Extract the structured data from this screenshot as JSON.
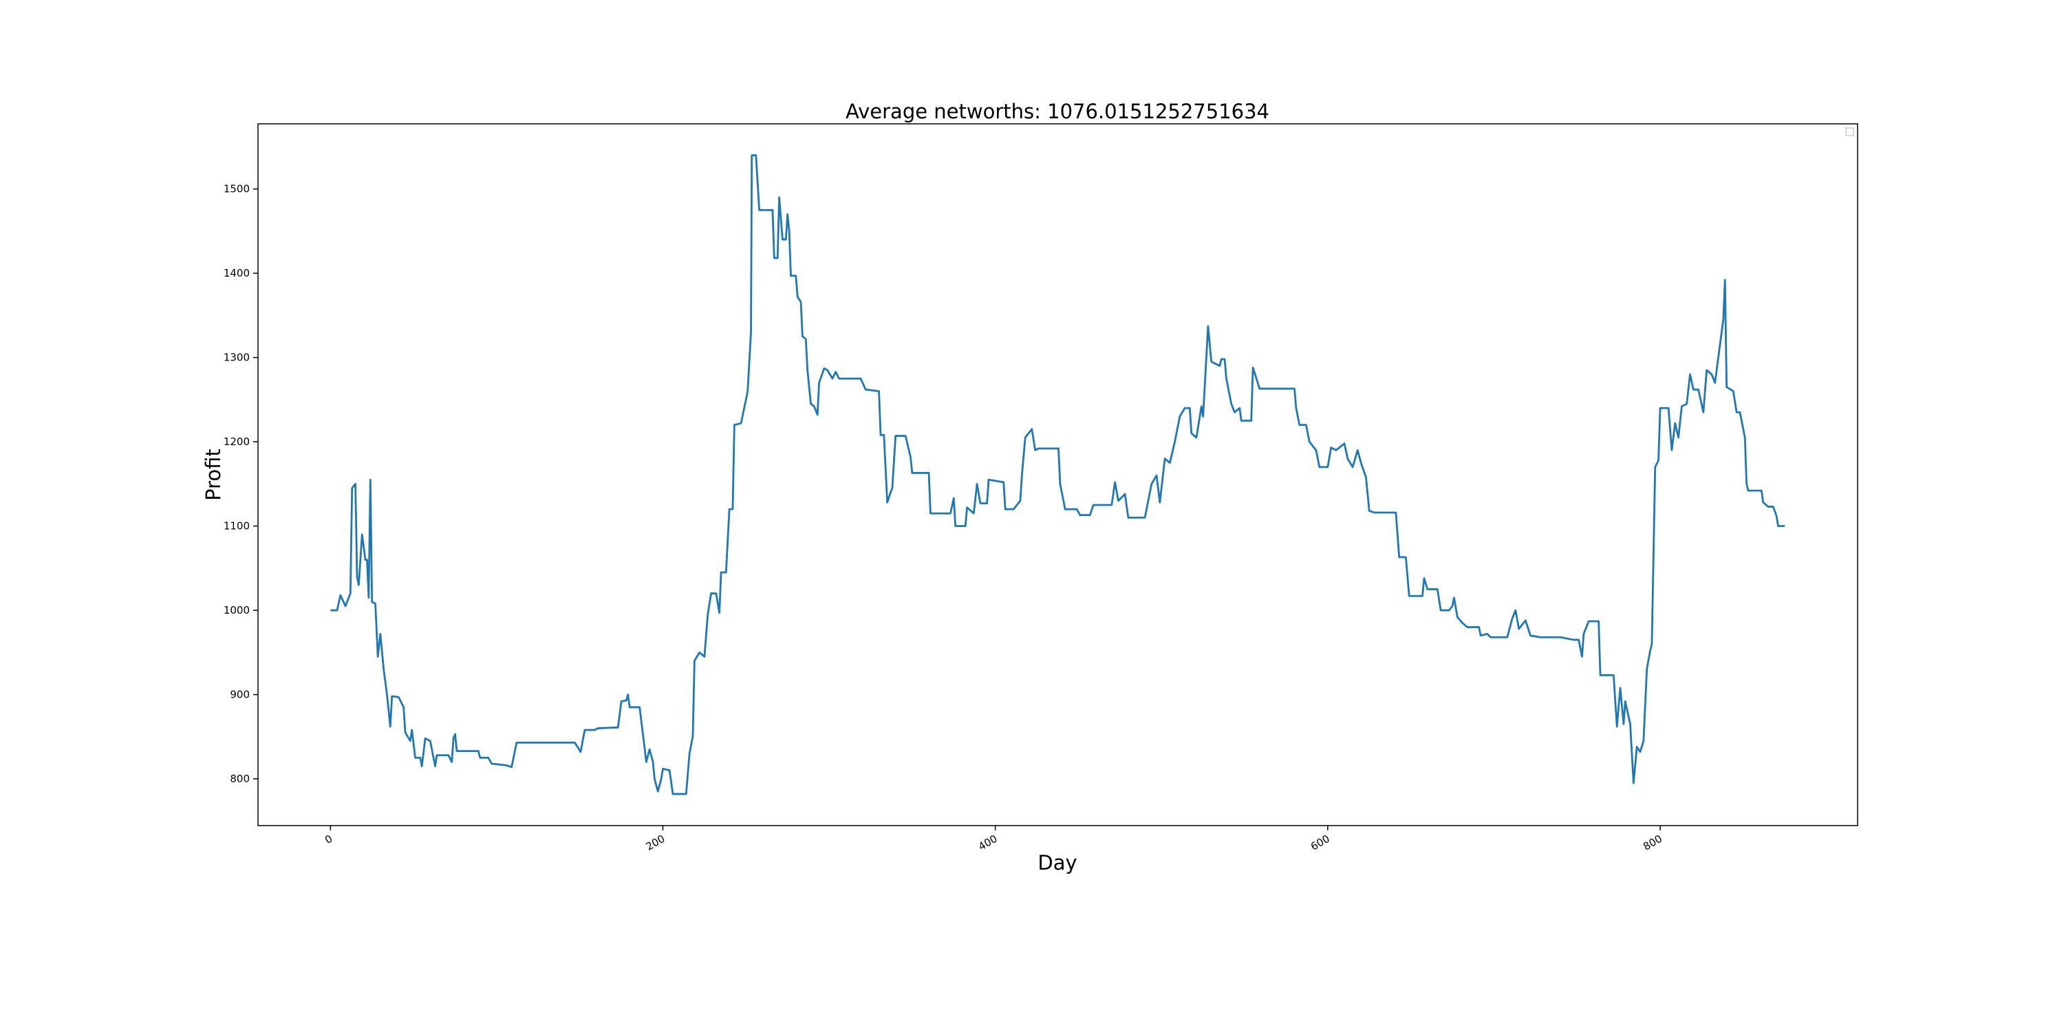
{
  "chart_data": {
    "type": "line",
    "title": "Average networths: 1076.0151252751634",
    "x_label": "Day",
    "y_label": "Profit",
    "x": [
      0,
      4,
      6,
      9,
      12,
      13,
      15,
      16,
      17,
      19,
      21,
      22,
      23,
      24,
      25,
      27,
      28.5,
      30,
      32,
      34,
      36,
      37,
      41,
      44,
      45,
      48,
      49,
      51,
      54,
      55,
      57,
      60,
      63,
      64,
      71,
      73,
      74,
      75,
      76,
      89,
      90,
      95,
      97,
      106,
      109,
      112,
      118,
      147,
      150.5,
      153,
      159,
      161,
      173,
      175,
      178,
      179,
      180,
      186,
      188.5,
      190,
      192,
      194,
      195,
      197,
      199,
      200,
      204,
      206,
      214,
      216,
      218,
      219,
      222,
      225,
      227,
      229,
      232,
      234,
      235,
      238,
      240,
      242,
      243,
      247,
      250,
      251,
      253,
      253.5,
      256,
      258,
      266,
      267,
      269,
      270,
      272,
      274,
      275,
      276,
      277,
      280,
      281,
      283,
      284,
      286,
      287,
      289,
      291,
      293,
      294,
      297,
      299,
      302,
      304,
      306,
      319,
      322,
      330,
      331,
      333,
      335,
      337,
      338,
      340,
      346,
      349,
      350,
      360,
      361,
      373,
      375,
      376,
      382,
      383,
      387,
      389,
      391,
      395,
      396,
      405,
      406,
      411,
      415,
      416,
      418,
      422,
      424,
      426,
      438,
      439,
      442,
      449,
      451,
      457,
      459,
      470,
      472,
      474,
      478,
      480,
      490,
      494,
      497,
      499,
      502,
      505,
      508,
      511,
      514,
      517,
      518,
      521,
      524,
      525,
      528,
      530,
      535,
      536,
      538,
      539,
      542,
      544,
      547,
      548,
      554,
      555,
      559,
      580,
      581,
      583,
      587,
      589,
      593,
      595,
      600,
      602,
      605,
      610,
      612,
      615,
      618,
      620,
      623,
      625,
      628,
      641,
      643,
      647,
      649,
      657,
      658,
      660,
      666,
      668,
      673,
      675,
      676,
      678,
      681,
      684,
      691,
      692,
      696,
      698,
      708,
      711,
      713,
      715,
      719,
      722,
      728,
      740,
      748,
      751,
      753,
      754,
      757,
      763,
      764,
      772,
      774,
      776,
      778,
      779,
      782,
      784,
      786,
      788,
      790,
      792,
      794,
      795,
      797,
      799,
      800,
      805,
      807,
      809,
      811,
      813,
      816,
      818,
      820,
      823,
      826,
      828,
      831,
      833,
      835,
      838,
      839,
      840,
      844,
      846,
      848,
      851,
      852,
      853,
      861,
      862,
      865,
      868,
      870,
      871,
      875
    ],
    "series": [
      {
        "color": "#1f77b4",
        "values": [
          1000,
          1000,
          1018,
          1005,
          1020,
          1145,
          1150,
          1040,
          1030,
          1090,
          1060,
          1060,
          1015,
          1155,
          1010,
          1008,
          945,
          972,
          930,
          900,
          862,
          898,
          897,
          885,
          855,
          845,
          858,
          825,
          825,
          815,
          848,
          845,
          815,
          828,
          828,
          820,
          848,
          853,
          833,
          833,
          825,
          825,
          818,
          816,
          814,
          843,
          843,
          843,
          832,
          858,
          858,
          860,
          861,
          892,
          893,
          900,
          885,
          885,
          845,
          820,
          835,
          820,
          800,
          785,
          800,
          812,
          810,
          782,
          782,
          830,
          850,
          940,
          950,
          945,
          995,
          1020,
          1020,
          997,
          1045,
          1045,
          1120,
          1120,
          1220,
          1222,
          1250,
          1260,
          1330,
          1540,
          1540,
          1475,
          1475,
          1418,
          1418,
          1490,
          1440,
          1440,
          1470,
          1450,
          1397,
          1397,
          1372,
          1366,
          1325,
          1322,
          1285,
          1245,
          1242,
          1232,
          1270,
          1287,
          1285,
          1275,
          1283,
          1275,
          1275,
          1262,
          1260,
          1208,
          1208,
          1128,
          1140,
          1145,
          1207,
          1207,
          1182,
          1163,
          1163,
          1115,
          1115,
          1133,
          1100,
          1100,
          1122,
          1115,
          1150,
          1127,
          1127,
          1155,
          1152,
          1120,
          1120,
          1130,
          1160,
          1205,
          1215,
          1190,
          1192,
          1192,
          1150,
          1120,
          1120,
          1113,
          1113,
          1125,
          1125,
          1152,
          1130,
          1138,
          1110,
          1110,
          1150,
          1160,
          1128,
          1180,
          1175,
          1200,
          1230,
          1240,
          1240,
          1210,
          1205,
          1242,
          1230,
          1337,
          1295,
          1290,
          1298,
          1298,
          1275,
          1245,
          1235,
          1240,
          1225,
          1225,
          1288,
          1263,
          1263,
          1240,
          1220,
          1220,
          1200,
          1190,
          1170,
          1170,
          1193,
          1190,
          1198,
          1180,
          1170,
          1190,
          1175,
          1158,
          1118,
          1116,
          1116,
          1063,
          1063,
          1017,
          1017,
          1038,
          1025,
          1025,
          1000,
          1000,
          1005,
          1015,
          992,
          985,
          980,
          980,
          970,
          972,
          968,
          968,
          990,
          1000,
          978,
          988,
          970,
          968,
          968,
          965,
          965,
          945,
          972,
          987,
          987,
          923,
          923,
          862,
          908,
          865,
          892,
          865,
          795,
          838,
          832,
          845,
          930,
          952,
          960,
          1170,
          1178,
          1240,
          1240,
          1190,
          1222,
          1205,
          1242,
          1245,
          1280,
          1262,
          1262,
          1235,
          1285,
          1280,
          1270,
          1300,
          1345,
          1392,
          1265,
          1260,
          1235,
          1235,
          1205,
          1150,
          1142,
          1142,
          1128,
          1123,
          1123,
          1112,
          1100,
          1100
        ]
      }
    ],
    "xlim": [
      -43.6,
      918.8
    ],
    "ylim": [
      744.5,
      1577.3
    ],
    "xticks": [
      0,
      200,
      400,
      600,
      800
    ],
    "yticks": [
      800,
      900,
      1000,
      1100,
      1200,
      1300,
      1400,
      1500
    ]
  }
}
